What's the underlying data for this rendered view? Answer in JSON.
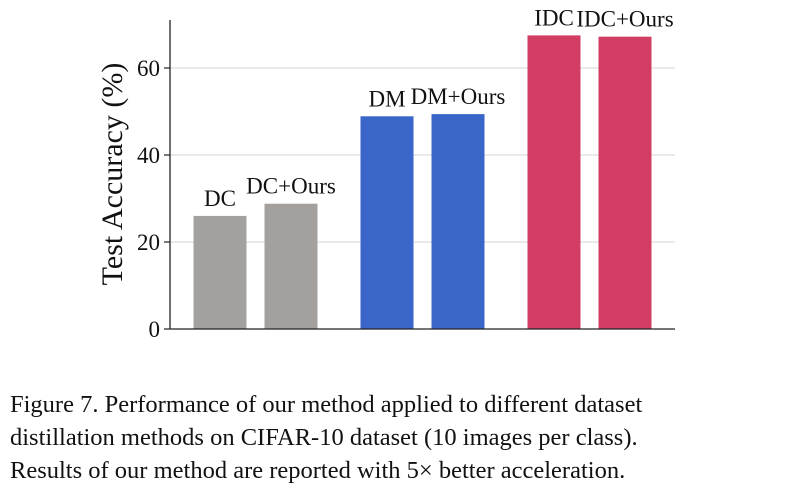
{
  "chart_data": {
    "type": "bar",
    "title": "",
    "xlabel": "",
    "ylabel": "Test Accuracy (%)",
    "ylim": [
      0,
      71
    ],
    "yticks": [
      0,
      20,
      40,
      60
    ],
    "grid": true,
    "categories": [
      "DC",
      "DC+Ours",
      "DM",
      "DM+Ours",
      "IDC",
      "IDC+Ours"
    ],
    "values": [
      26.0,
      28.8,
      48.9,
      49.4,
      67.5,
      67.2
    ],
    "groups": [
      {
        "name": "DC",
        "bars": [
          0,
          1
        ],
        "color": "#a3a09e"
      },
      {
        "name": "DM",
        "bars": [
          2,
          3
        ],
        "color": "#3b66c9"
      },
      {
        "name": "IDC",
        "bars": [
          4,
          5
        ],
        "color": "#d13d63"
      }
    ]
  },
  "caption": {
    "line1": "Figure 7.  Performance of our method applied to different dataset",
    "line2": "distillation methods on CIFAR-10 dataset (10 images per class).",
    "line3": "Results of our method are reported with 5× better acceleration."
  }
}
